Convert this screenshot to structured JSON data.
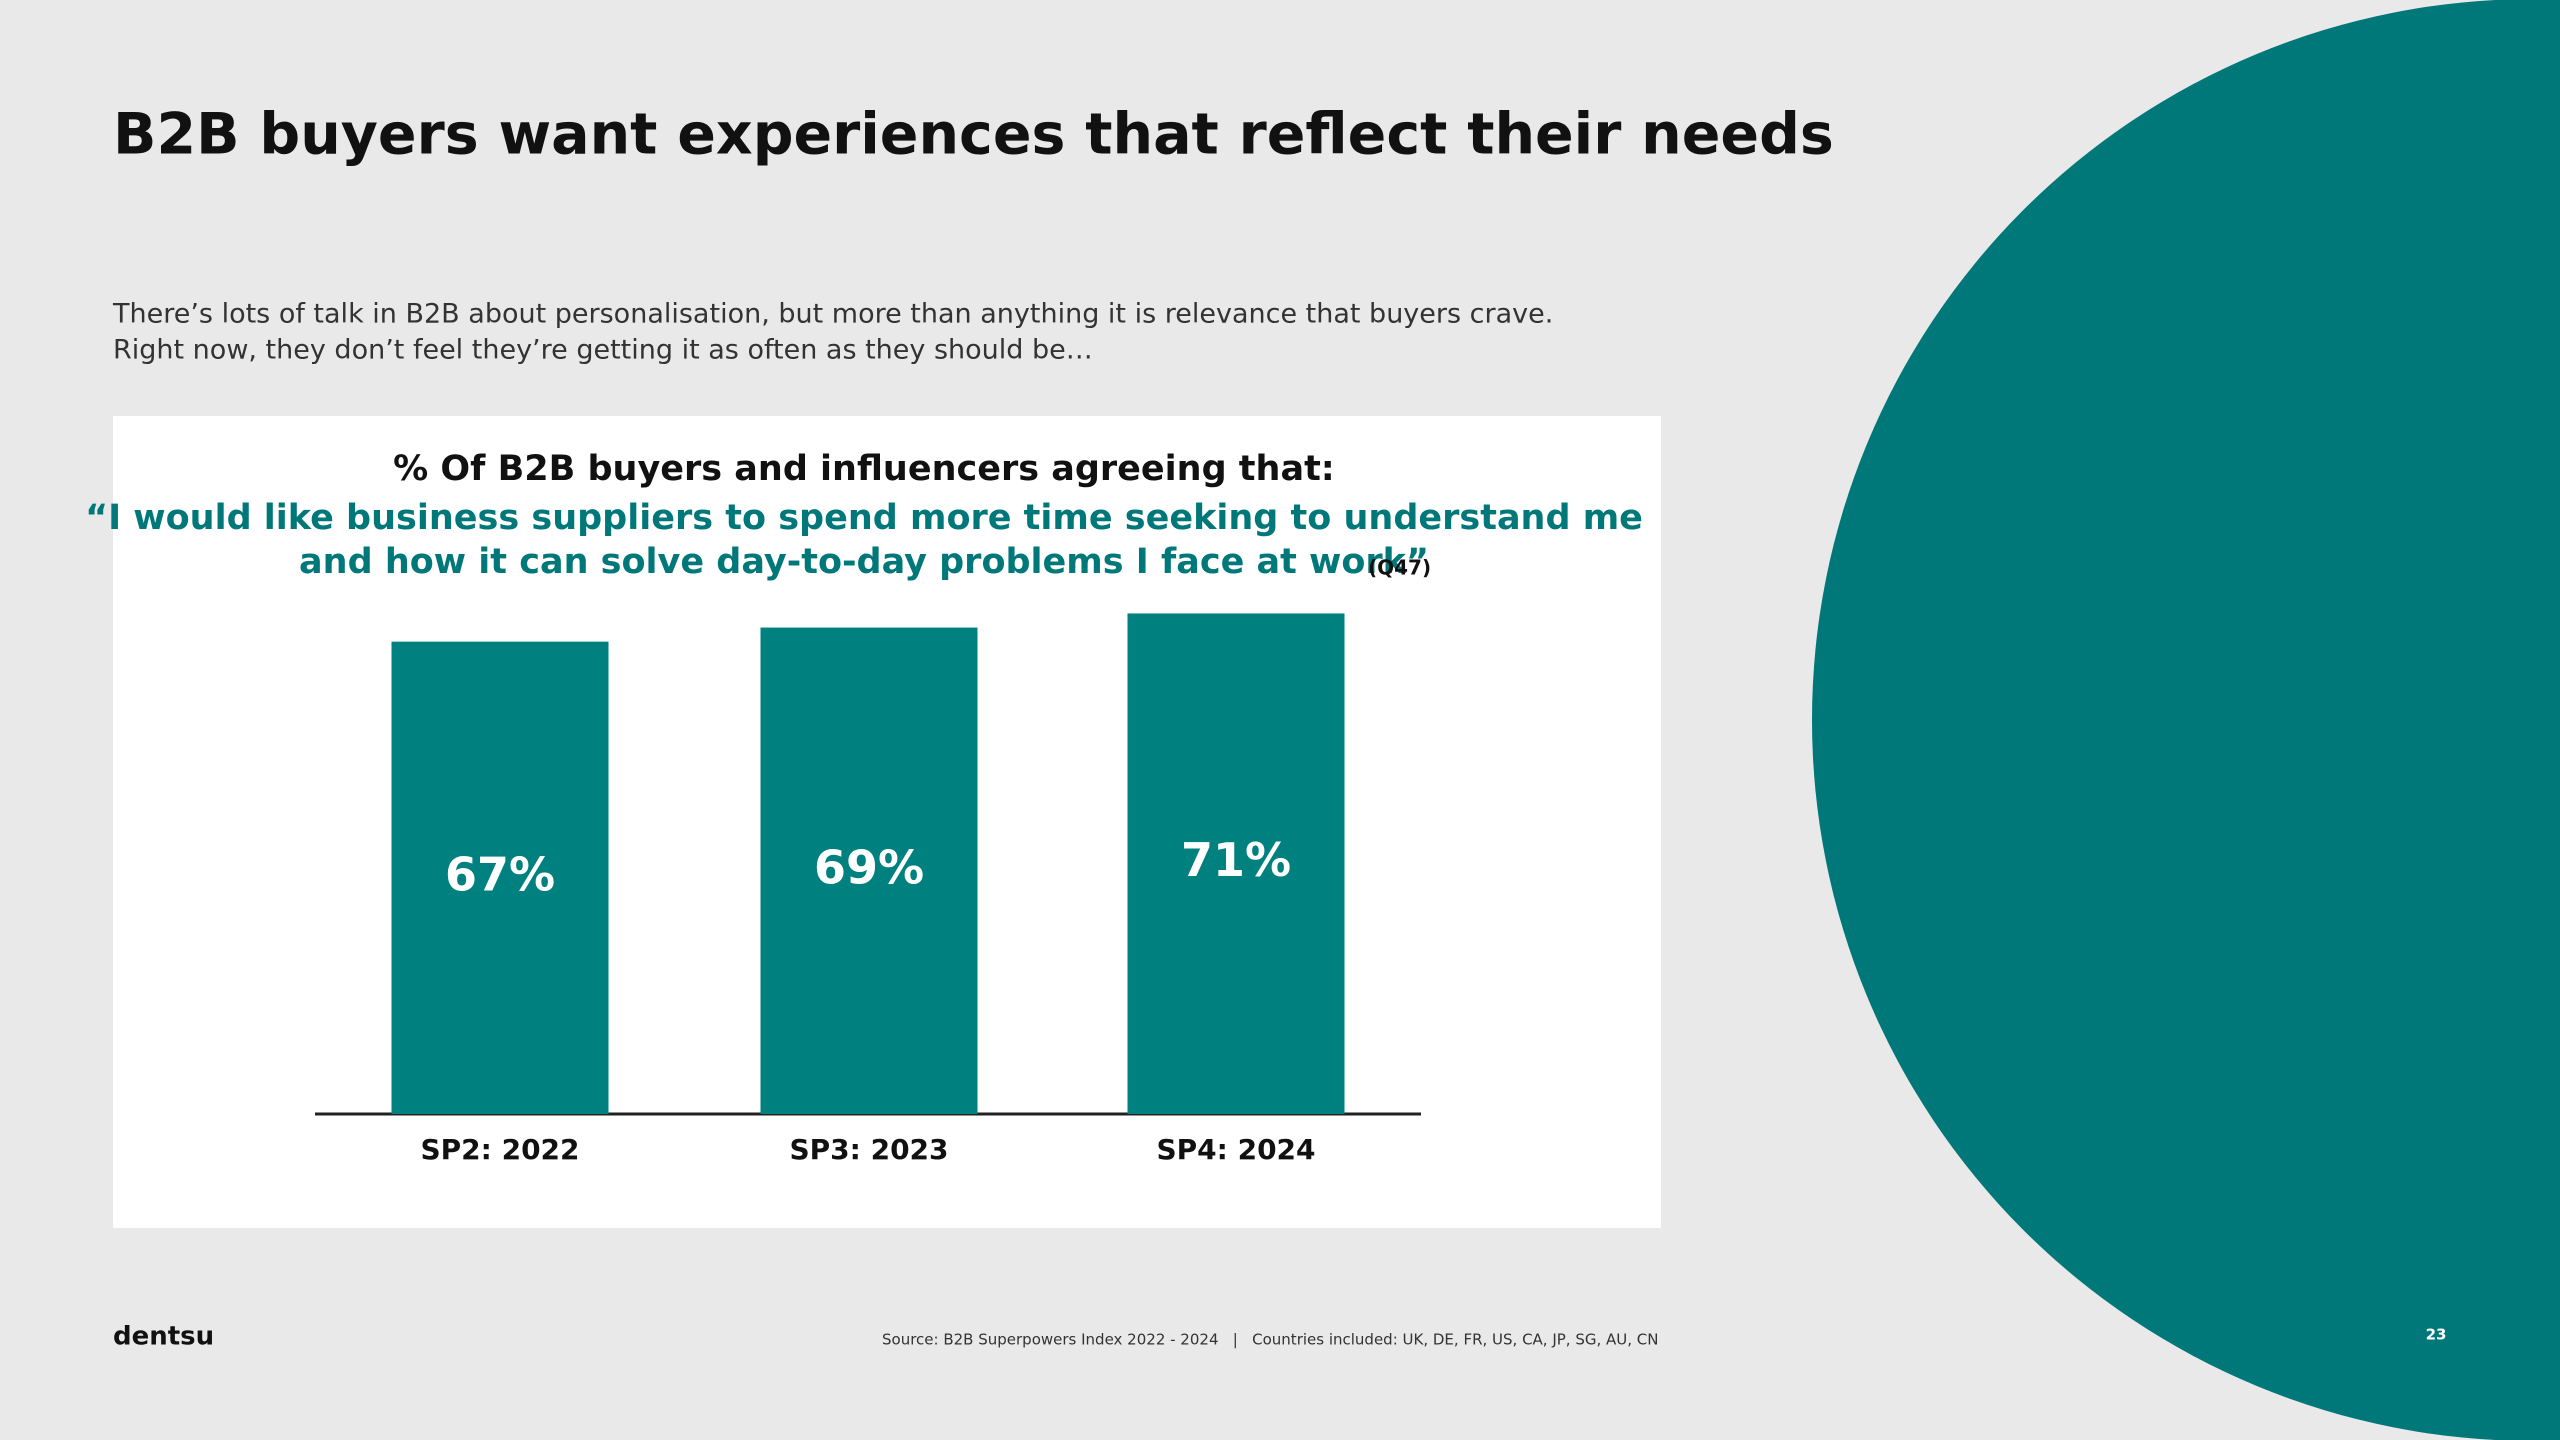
{
  "slide": {
    "title": "B2B buyers want experiences that reflect their needs",
    "intro": [
      "There’s lots of talk in B2B about personalisation, but more than anything it is relevance that buyers crave.",
      "Right now, they don’t feel they’re getting it as often as they should be…"
    ],
    "logo": "dentsu",
    "source": "Source: B2B Superpowers Index 2022 - 2024   |   Countries included: UK, DE, FR, US, CA, JP, SG, AU, CN",
    "page_number": "23"
  },
  "chart_data": {
    "type": "bar",
    "title": "% Of B2B buyers and influencers agreeing that:",
    "subtitle": [
      "“I would like business suppliers to spend more time seeking to understand me",
      "and how it can solve day-to-day problems I face at work”"
    ],
    "note": "(Q47)",
    "categories": [
      "SP2: 2022",
      "SP3: 2023",
      "SP4: 2024"
    ],
    "values": [
      67,
      69,
      71
    ],
    "value_labels": [
      "67%",
      "69%",
      "71%"
    ],
    "color": "#00807f"
  }
}
